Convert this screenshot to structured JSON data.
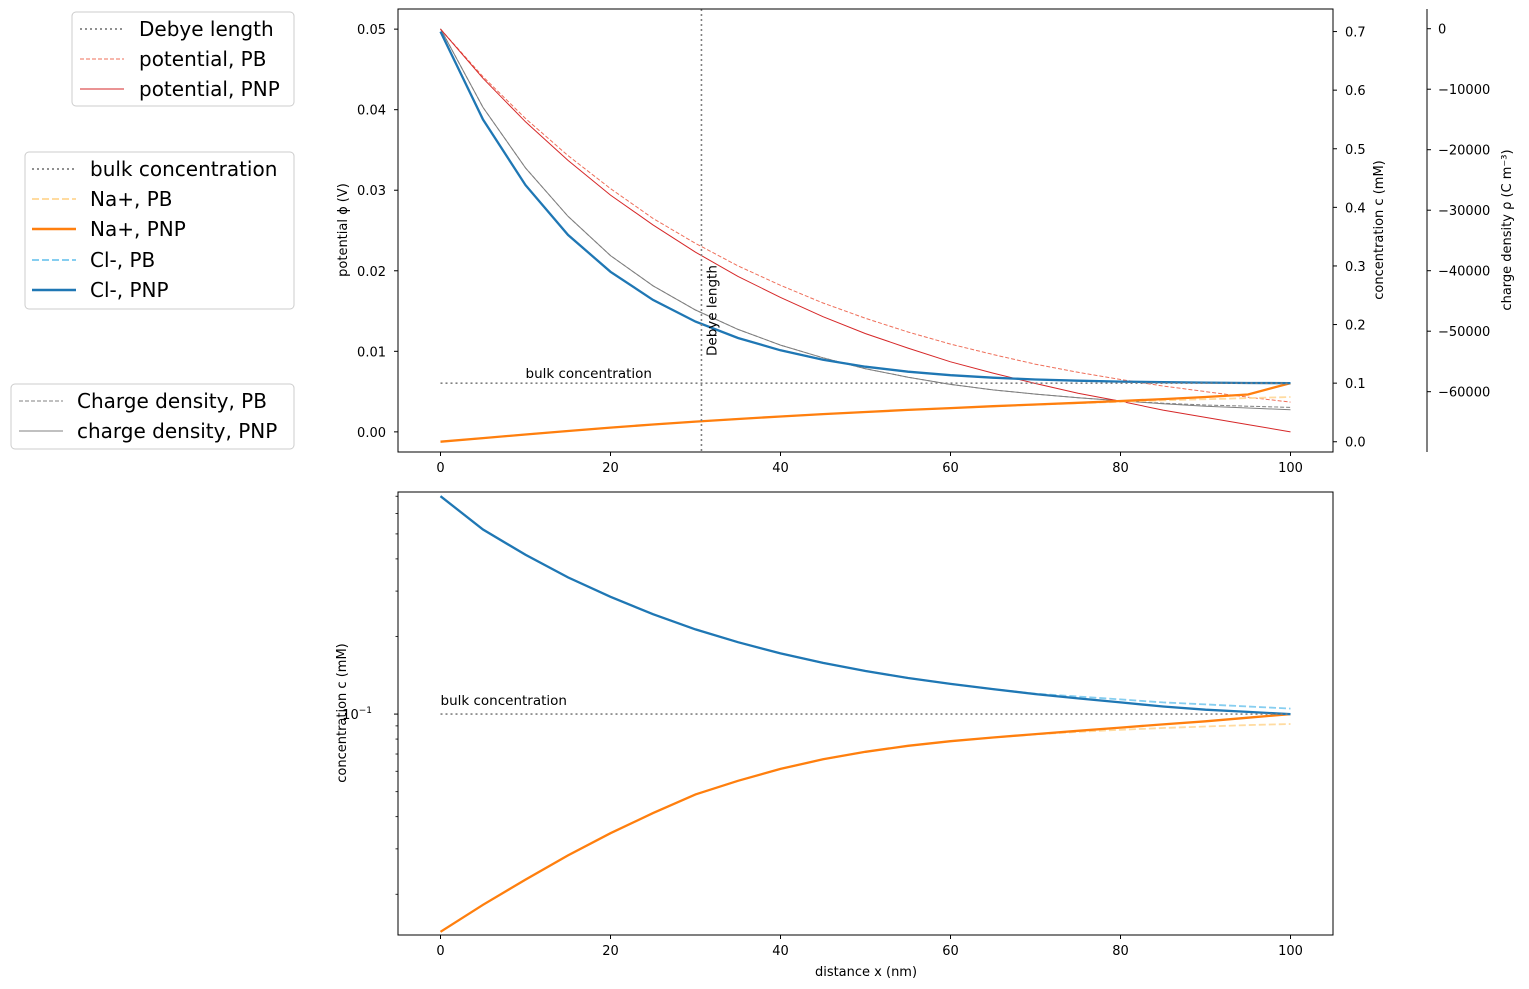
{
  "legend_potential": [
    "Debye length",
    "potential, PB",
    "potential, PNP"
  ],
  "legend_concentration": [
    "bulk concentration",
    "Na+, PB",
    "Na+, PNP",
    "Cl-, PB",
    "Cl-, PNP"
  ],
  "legend_charge": [
    "Charge density, PB",
    "charge density, PNP"
  ],
  "colors": {
    "potential_pnp": "#d62728",
    "potential_pb": "#ef6f5a",
    "na_pnp": "#ff7f0e",
    "na_pb": "#ffdba0",
    "cl_pnp": "#1f77b4",
    "cl_pb": "#86cef0",
    "charge": "#808080",
    "reference": "#808080"
  },
  "chart_data": [
    {
      "type": "line",
      "panel": "top",
      "x": [
        0,
        5,
        10,
        15,
        20,
        25,
        30,
        35,
        40,
        45,
        50,
        55,
        60,
        65,
        70,
        75,
        80,
        85,
        90,
        95,
        100
      ],
      "xlim": [
        -5,
        105
      ],
      "xticks": [
        0,
        20,
        40,
        60,
        80,
        100
      ],
      "annotations": {
        "vline": "Debye length",
        "hline": "bulk concentration"
      },
      "debye_length_nm": 30.7,
      "bulk_concentration_mM": 0.1,
      "axes": [
        {
          "side": "left",
          "label": "potential ϕ (V)",
          "lim": [
            -0.0025,
            0.0525
          ],
          "ticks": [
            0.0,
            0.01,
            0.02,
            0.03,
            0.04,
            0.05
          ],
          "tick_labels": [
            "0.00",
            "0.01",
            "0.02",
            "0.03",
            "0.04",
            "0.05"
          ]
        },
        {
          "side": "right",
          "label": "concentration c (mM)",
          "lim": [
            -0.0175,
            0.7385
          ],
          "ticks": [
            0.0,
            0.1,
            0.2,
            0.3,
            0.4,
            0.5,
            0.6,
            0.7
          ],
          "tick_labels": [
            "0.0",
            "0.1",
            "0.2",
            "0.3",
            "0.4",
            "0.5",
            "0.6",
            "0.7"
          ]
        },
        {
          "side": "right-offset",
          "label": "charge density ρ (C m⁻³)",
          "lim": [
            -69970,
            3260
          ],
          "ticks": [
            0,
            -10000,
            -20000,
            -30000,
            -40000,
            -50000,
            -60000
          ],
          "tick_labels": [
            "0",
            "−10000",
            "−20000",
            "−30000",
            "−40000",
            "−50000",
            "−60000"
          ]
        }
      ],
      "series": [
        {
          "name": "potential, PB",
          "axis": 0,
          "style": "dashed",
          "values": [
            0.05,
            0.0441,
            0.0389,
            0.0343,
            0.0302,
            0.0265,
            0.0234,
            0.0206,
            0.0182,
            0.016,
            0.0141,
            0.0124,
            0.0109,
            0.0096,
            0.0084,
            0.0074,
            0.0065,
            0.0057,
            0.005,
            0.0043,
            0.0037
          ]
        },
        {
          "name": "potential, PNP",
          "axis": 0,
          "style": "solid",
          "values": [
            0.05,
            0.0439,
            0.0385,
            0.0337,
            0.0294,
            0.0257,
            0.0223,
            0.0193,
            0.0167,
            0.0143,
            0.0122,
            0.0104,
            0.0087,
            0.0073,
            0.006,
            0.0048,
            0.0038,
            0.0027,
            0.0018,
            0.0009,
            0.0
          ]
        },
        {
          "name": "Na+, PB",
          "axis": 1,
          "style": "dashed",
          "values": [
            0.0,
            0.0062,
            0.0124,
            0.0184,
            0.0241,
            0.0294,
            0.0343,
            0.0389,
            0.0431,
            0.0471,
            0.0508,
            0.0543,
            0.0575,
            0.0604,
            0.0632,
            0.0658,
            0.0682,
            0.0705,
            0.0726,
            0.0745,
            0.0763
          ]
        },
        {
          "name": "Na+, PNP",
          "axis": 1,
          "style": "solid",
          "values": [
            0.0,
            0.0062,
            0.0124,
            0.0184,
            0.0241,
            0.0294,
            0.0343,
            0.0389,
            0.0431,
            0.0471,
            0.0508,
            0.0543,
            0.0575,
            0.0606,
            0.0636,
            0.0665,
            0.0695,
            0.0727,
            0.0763,
            0.0807,
            0.1
          ]
        },
        {
          "name": "Cl-, PB",
          "axis": 1,
          "style": "dashed",
          "values": [
            0.7,
            0.55,
            0.438,
            0.353,
            0.29,
            0.242,
            0.205,
            0.177,
            0.156,
            0.14,
            0.128,
            0.1195,
            0.1135,
            0.1093,
            0.1063,
            0.1042,
            0.1027,
            0.1016,
            0.1009,
            0.1003,
            0.1
          ]
        },
        {
          "name": "Cl-, PNP",
          "axis": 1,
          "style": "solid",
          "values": [
            0.7,
            0.55,
            0.438,
            0.353,
            0.29,
            0.242,
            0.205,
            0.177,
            0.156,
            0.14,
            0.128,
            0.1195,
            0.1135,
            0.1093,
            0.1063,
            0.1042,
            0.1027,
            0.1016,
            0.1009,
            0.1003,
            0.1
          ]
        },
        {
          "name": "Charge density, PB",
          "axis": 2,
          "style": "dashed",
          "values": [
            0,
            -13000,
            -23000,
            -31000,
            -37500,
            -42500,
            -46500,
            -49700,
            -52300,
            -54400,
            -56200,
            -57600,
            -58800,
            -59700,
            -60400,
            -61000,
            -61500,
            -61900,
            -62200,
            -62400,
            -62600
          ]
        },
        {
          "name": "charge density, PNP",
          "axis": 2,
          "style": "solid",
          "values": [
            0,
            -13000,
            -23000,
            -31000,
            -37500,
            -42500,
            -46500,
            -49700,
            -52300,
            -54400,
            -56200,
            -57600,
            -58800,
            -59700,
            -60400,
            -61000,
            -61500,
            -62000,
            -62400,
            -62700,
            -63000
          ]
        }
      ]
    },
    {
      "type": "line",
      "panel": "bottom",
      "yscale": "log",
      "xlabel": "distance x (nm)",
      "ylabel": "concentration c (mM)",
      "x": [
        0,
        5,
        10,
        15,
        20,
        25,
        30,
        35,
        40,
        45,
        50,
        55,
        60,
        65,
        70,
        75,
        80,
        85,
        90,
        95,
        100
      ],
      "xlim": [
        -5,
        105
      ],
      "xticks": [
        0,
        20,
        40,
        60,
        80,
        100
      ],
      "ylim": [
        0.0139,
        0.727
      ],
      "yticks_major": [
        0.1
      ],
      "ytick_label": "10",
      "ytick_exponent": "−1",
      "hline": {
        "value": 0.1,
        "label": "bulk concentration"
      },
      "series": [
        {
          "name": "Na+, PB",
          "style": "dashed",
          "values": [
            0.0143,
            0.0182,
            0.0228,
            0.0283,
            0.0345,
            0.0413,
            0.0488,
            0.0551,
            0.0613,
            0.0668,
            0.0714,
            0.0753,
            0.0785,
            0.0811,
            0.0834,
            0.0853,
            0.0869,
            0.0883,
            0.0895,
            0.0906,
            0.0915
          ]
        },
        {
          "name": "Na+, PNP",
          "style": "solid",
          "values": [
            0.0143,
            0.0182,
            0.0228,
            0.0283,
            0.0345,
            0.0413,
            0.0488,
            0.0551,
            0.0613,
            0.0668,
            0.0714,
            0.0753,
            0.0785,
            0.0811,
            0.0836,
            0.0861,
            0.0886,
            0.0912,
            0.0938,
            0.0968,
            0.1
          ]
        },
        {
          "name": "Cl-, PB",
          "style": "dashed",
          "values": [
            0.7,
            0.52,
            0.415,
            0.339,
            0.285,
            0.244,
            0.213,
            0.19,
            0.172,
            0.158,
            0.147,
            0.138,
            0.131,
            0.125,
            0.12,
            0.117,
            0.114,
            0.111,
            0.109,
            0.107,
            0.105
          ]
        },
        {
          "name": "Cl-, PNP",
          "style": "solid",
          "values": [
            0.7,
            0.52,
            0.415,
            0.339,
            0.285,
            0.244,
            0.213,
            0.19,
            0.172,
            0.158,
            0.147,
            0.138,
            0.131,
            0.125,
            0.1195,
            0.115,
            0.111,
            0.107,
            0.104,
            0.102,
            0.1
          ]
        }
      ]
    }
  ]
}
